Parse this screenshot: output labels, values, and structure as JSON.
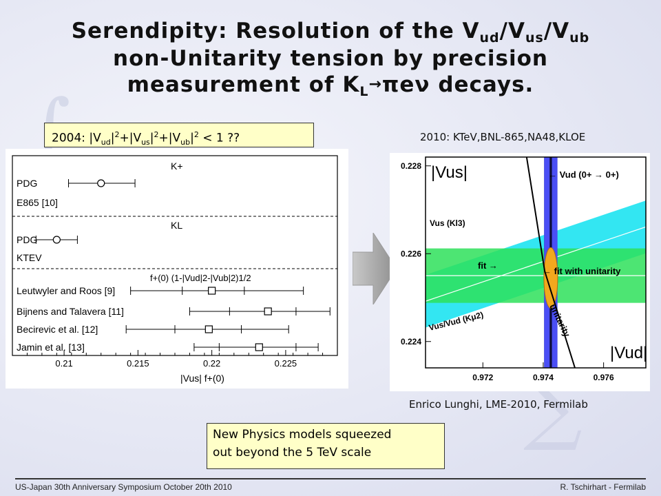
{
  "title": {
    "line1_a": "Serendipity:  Resolution of the V",
    "line1_sub1": "ud",
    "line1_b": "/V",
    "line1_sub2": "us",
    "line1_c": "/V",
    "line1_sub3": "ub",
    "line2": "non-Unitarity tension by precision",
    "line3_a": "measurement of K",
    "line3_sub": "L",
    "line3_arrow": "→",
    "line3_b": "πeν decays."
  },
  "box2004": {
    "a": "2004:  |V",
    "ud": "ud",
    "b": "|",
    "sq1": "2",
    "c": "+|V",
    "us": "us",
    "d": "|",
    "sq2": "2",
    "e": "+|V",
    "ub": "ub",
    "f": "|",
    "sq3": "2",
    "g": " < 1 ??"
  },
  "caption2010": "2010:  KTeV,BNL-865,NA48,KLOE",
  "credit": "Enrico Lunghi, LME-2010, Fermilab",
  "newphysics": {
    "line1": "New Physics models squeezed",
    "line2": "out beyond the 5 TeV scale"
  },
  "footer": {
    "left": "US-Japan 30th Anniversary Symposium  October 20th 2010",
    "right": "R. Tschirhart - Fermilab"
  },
  "colors": {
    "box_bg": "#ffffc8",
    "green_band": "#2ee05a",
    "cyan_band": "#33e6f2",
    "blue_band": "#4a4ef5",
    "ellipse": "#f2a81e",
    "arrow": "#a8a8a8"
  },
  "chart_data": [
    {
      "type": "scatter",
      "title": "",
      "xlabel": "|Vus| f+(0)",
      "ylabel": "",
      "xlim": [
        0.2065,
        0.2285
      ],
      "x_ticks": [
        0.21,
        0.215,
        0.22,
        0.225
      ],
      "x_tick_labels": [
        "0.21",
        "0.215",
        "0.22",
        "0.225"
      ],
      "sections": [
        {
          "header": "K+",
          "rows": [
            "PDG",
            "E865 [10]"
          ]
        },
        {
          "header": "KL",
          "rows": [
            "PDG",
            "KTEV"
          ]
        },
        {
          "header": "f+(0) (1-|Vud|2-|Vub|2)1/2",
          "rows": [
            "Leutwyler and Roos [9]",
            "Bijnens and Talavera [11]",
            "Becirevic et al. [12]",
            "Jamin et al. [13]"
          ]
        }
      ],
      "points": [
        {
          "label": "PDG (K+)",
          "x": 0.2125,
          "xmin": 0.2103,
          "xmax": 0.2148,
          "marker": "circle"
        },
        {
          "label": "PDG (KL)",
          "x": 0.2095,
          "xmin": 0.2081,
          "xmax": 0.2109,
          "marker": "circle"
        },
        {
          "label": "Leutwyler and Roos [9]",
          "x": 0.22,
          "xmin": 0.2145,
          "xmax": 0.2262,
          "inner": [
            0.218,
            0.2222
          ],
          "marker": "square"
        },
        {
          "label": "Bijnens and Talavera [11]",
          "x": 0.2238,
          "xmin": 0.2185,
          "xmax": 0.228,
          "inner": [
            0.2212,
            0.2257
          ],
          "marker": "square"
        },
        {
          "label": "Becirevic et al. [12]",
          "x": 0.2198,
          "xmin": 0.2142,
          "xmax": 0.2252,
          "inner": [
            0.2175,
            0.222
          ],
          "marker": "square"
        },
        {
          "label": "Jamin et al. [13]",
          "x": 0.2232,
          "xmin": 0.2188,
          "xmax": 0.2272,
          "inner": [
            0.2205,
            0.2257
          ],
          "marker": "square"
        }
      ]
    },
    {
      "type": "band",
      "title": "",
      "xlabel": "|Vud|",
      "ylabel": "|Vus|",
      "xlim": [
        0.9701,
        0.9774
      ],
      "ylim": [
        0.2234,
        0.2282
      ],
      "x_ticks": [
        0.972,
        0.974,
        0.976
      ],
      "x_tick_labels": [
        "0.972",
        "0.974",
        "0.976"
      ],
      "y_ticks": [
        0.228,
        0.226,
        0.224
      ],
      "y_tick_labels": [
        "0.228",
        "0.226",
        "0.224"
      ],
      "bands": [
        {
          "name": "Vud (0+ → 0+)",
          "type": "vertical",
          "x_center": 0.97425,
          "half_width": 0.00022
        },
        {
          "name": "Vus (Kl3)",
          "type": "horizontal",
          "y_center": 0.2255,
          "half_width": 0.00062
        },
        {
          "name": "Vus/Vud (Kμ2)",
          "type": "sloped",
          "ratio": 0.23185,
          "half_width_y": 0.0006
        }
      ],
      "unitarity_curve": {
        "label": "unitarity",
        "points": [
          [
            0.97345,
            0.2282
          ],
          [
            0.97405,
            0.2256
          ],
          [
            0.97505,
            0.2234
          ]
        ]
      },
      "fit": {
        "label": "fit",
        "x": 0.97425,
        "y": 0.22545
      },
      "fit_unitarity": {
        "label": "fit with unitarity",
        "x": 0.97415,
        "y": 0.2257
      },
      "annotations": [
        "Vud (0+ → 0+)",
        "Vus (Kl3)",
        "Vus/Vud (Kμ2)",
        "fit",
        "fit with unitarity",
        "unitarity"
      ]
    }
  ]
}
